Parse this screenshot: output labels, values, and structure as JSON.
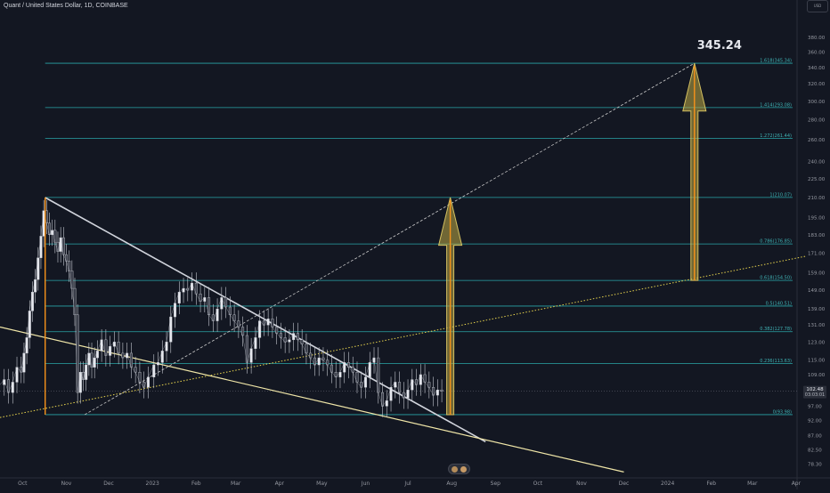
{
  "symbol": "Quant / United States Dollar, 1D, COINBASE",
  "price_box": "USD",
  "chart_data": {
    "type": "line",
    "title": "345.24",
    "yaxis": {
      "scale": "log",
      "range": [
        76.6,
        398
      ],
      "ticks": [
        "380.00",
        "360.00",
        "340.00",
        "320.00",
        "300.00",
        "280.00",
        "260.00",
        "240.00",
        "225.00",
        "210.00",
        "195.00",
        "183.00",
        "171.00",
        "159.00",
        "149.00",
        "139.00",
        "131.00",
        "123.00",
        "115.00",
        "109.00",
        "102.00",
        "97.00",
        "92.00",
        "87.00",
        "82.50",
        "78.30"
      ],
      "last_price": "102.48",
      "countdown": "03:03:01"
    },
    "xaxis": {
      "range": [
        "2022-09-15",
        "2024-04-08"
      ],
      "ticks": [
        {
          "label": "Oct",
          "date": "2022-10-01"
        },
        {
          "label": "Nov",
          "date": "2022-11-01"
        },
        {
          "label": "Dec",
          "date": "2022-12-01"
        },
        {
          "label": "2023",
          "date": "2023-01-01"
        },
        {
          "label": "Feb",
          "date": "2023-02-01"
        },
        {
          "label": "Mar",
          "date": "2023-03-01"
        },
        {
          "label": "Apr",
          "date": "2023-04-01"
        },
        {
          "label": "May",
          "date": "2023-05-01"
        },
        {
          "label": "Jun",
          "date": "2023-06-01"
        },
        {
          "label": "Jul",
          "date": "2023-07-01"
        },
        {
          "label": "Aug",
          "date": "2023-08-01"
        },
        {
          "label": "Sep",
          "date": "2023-09-01"
        },
        {
          "label": "Oct",
          "date": "2023-10-01"
        },
        {
          "label": "Nov",
          "date": "2023-11-01"
        },
        {
          "label": "Dec",
          "date": "2023-12-01"
        },
        {
          "label": "2024",
          "date": "2024-01-01"
        },
        {
          "label": "Feb",
          "date": "2024-02-01"
        },
        {
          "label": "Mar",
          "date": "2024-03-01"
        },
        {
          "label": "Apr",
          "date": "2024-04-01"
        }
      ]
    },
    "fib_levels": [
      {
        "label": "0(93.98)",
        "value": 93.98
      },
      {
        "label": "0.236(113.63)",
        "value": 113.63
      },
      {
        "label": "0.382(127.78)",
        "value": 127.78
      },
      {
        "label": "0.5(140.51)",
        "value": 140.51
      },
      {
        "label": "0.618(154.50)",
        "value": 154.5
      },
      {
        "label": "0.786(176.85)",
        "value": 176.85
      },
      {
        "label": "1(210.07)",
        "value": 210.07
      },
      {
        "label": "1.272(261.44)",
        "value": 261.44
      },
      {
        "label": "1.414(293.08)",
        "value": 293.08
      },
      {
        "label": "1.618(345.34)",
        "value": 345.34
      }
    ],
    "trendlines": [
      {
        "name": "descending-resistance",
        "points": [
          [
            "2022-10-17",
            210
          ],
          [
            "2023-08-25",
            85
          ]
        ]
      },
      {
        "name": "long-support",
        "points": [
          [
            "2022-09-15",
            130
          ],
          [
            "2023-12-01",
            76
          ]
        ]
      },
      {
        "name": "dotted-support",
        "points": [
          [
            "2022-09-15",
            93
          ],
          [
            "2024-04-08",
            169
          ]
        ]
      },
      {
        "name": "dashed-projection",
        "points": [
          [
            "2022-11-14",
            93.98
          ],
          [
            "2024-01-20",
            345.34
          ]
        ]
      }
    ],
    "arrows": [
      {
        "name": "arrow-left",
        "date": "2023-07-31",
        "from": 93.98,
        "to": 210.07
      },
      {
        "name": "arrow-right",
        "date": "2024-01-20",
        "from": 154.5,
        "to": 345.34
      }
    ],
    "vertical_markers": [
      {
        "date": "2022-10-17",
        "from": 93.98,
        "to": 210.07
      }
    ],
    "price_series": [
      [
        "2022-09-15",
        105
      ],
      [
        "2022-09-18",
        107
      ],
      [
        "2022-09-21",
        102
      ],
      [
        "2022-09-24",
        106
      ],
      [
        "2022-09-27",
        112
      ],
      [
        "2022-09-30",
        110
      ],
      [
        "2022-10-02",
        118
      ],
      [
        "2022-10-04",
        125
      ],
      [
        "2022-10-06",
        138
      ],
      [
        "2022-10-08",
        148
      ],
      [
        "2022-10-10",
        155
      ],
      [
        "2022-10-12",
        168
      ],
      [
        "2022-10-14",
        182
      ],
      [
        "2022-10-16",
        200
      ],
      [
        "2022-10-18",
        191
      ],
      [
        "2022-10-20",
        183
      ],
      [
        "2022-10-22",
        186
      ],
      [
        "2022-10-24",
        178
      ],
      [
        "2022-10-26",
        172
      ],
      [
        "2022-10-28",
        181
      ],
      [
        "2022-10-30",
        170
      ],
      [
        "2022-11-01",
        166
      ],
      [
        "2022-11-03",
        160
      ],
      [
        "2022-11-05",
        150
      ],
      [
        "2022-11-07",
        136
      ],
      [
        "2022-11-09",
        102
      ],
      [
        "2022-11-11",
        110
      ],
      [
        "2022-11-13",
        107
      ],
      [
        "2022-11-15",
        113
      ],
      [
        "2022-11-17",
        118
      ],
      [
        "2022-11-19",
        112
      ],
      [
        "2022-11-21",
        116
      ],
      [
        "2022-11-23",
        119
      ],
      [
        "2022-11-26",
        124
      ],
      [
        "2022-11-29",
        117
      ],
      [
        "2022-12-02",
        121
      ],
      [
        "2022-12-05",
        123
      ],
      [
        "2022-12-08",
        118
      ],
      [
        "2022-12-11",
        116
      ],
      [
        "2022-12-14",
        118
      ],
      [
        "2022-12-17",
        112
      ],
      [
        "2022-12-20",
        110
      ],
      [
        "2022-12-23",
        106
      ],
      [
        "2022-12-26",
        104
      ],
      [
        "2022-12-29",
        108
      ],
      [
        "2023-01-02",
        113
      ],
      [
        "2023-01-05",
        114
      ],
      [
        "2023-01-08",
        119
      ],
      [
        "2023-01-11",
        123
      ],
      [
        "2023-01-14",
        135
      ],
      [
        "2023-01-17",
        142
      ],
      [
        "2023-01-20",
        148
      ],
      [
        "2023-01-23",
        150
      ],
      [
        "2023-01-26",
        149
      ],
      [
        "2023-01-29",
        153
      ],
      [
        "2023-02-01",
        147
      ],
      [
        "2023-02-04",
        143
      ],
      [
        "2023-02-07",
        145
      ],
      [
        "2023-02-10",
        136
      ],
      [
        "2023-02-13",
        133
      ],
      [
        "2023-02-16",
        139
      ],
      [
        "2023-02-19",
        145
      ],
      [
        "2023-02-22",
        140
      ],
      [
        "2023-02-25",
        136
      ],
      [
        "2023-02-28",
        133
      ],
      [
        "2023-03-03",
        130
      ],
      [
        "2023-03-06",
        126
      ],
      [
        "2023-03-09",
        114
      ],
      [
        "2023-03-12",
        120
      ],
      [
        "2023-03-15",
        125
      ],
      [
        "2023-03-18",
        133
      ],
      [
        "2023-03-21",
        131
      ],
      [
        "2023-03-24",
        134
      ],
      [
        "2023-03-27",
        130
      ],
      [
        "2023-03-30",
        127
      ],
      [
        "2023-04-02",
        125
      ],
      [
        "2023-04-05",
        123
      ],
      [
        "2023-04-08",
        124
      ],
      [
        "2023-04-11",
        127
      ],
      [
        "2023-04-14",
        124
      ],
      [
        "2023-04-17",
        122
      ],
      [
        "2023-04-20",
        118
      ],
      [
        "2023-04-23",
        116
      ],
      [
        "2023-04-26",
        113
      ],
      [
        "2023-04-29",
        116
      ],
      [
        "2023-05-02",
        115
      ],
      [
        "2023-05-05",
        113
      ],
      [
        "2023-05-08",
        110
      ],
      [
        "2023-05-11",
        108
      ],
      [
        "2023-05-14",
        110
      ],
      [
        "2023-05-17",
        114
      ],
      [
        "2023-05-20",
        112
      ],
      [
        "2023-05-23",
        110
      ],
      [
        "2023-05-26",
        106
      ],
      [
        "2023-05-29",
        104
      ],
      [
        "2023-06-01",
        108
      ],
      [
        "2023-06-04",
        114
      ],
      [
        "2023-06-07",
        116
      ],
      [
        "2023-06-10",
        102
      ],
      [
        "2023-06-13",
        97
      ],
      [
        "2023-06-16",
        99
      ],
      [
        "2023-06-19",
        104
      ],
      [
        "2023-06-22",
        106
      ],
      [
        "2023-06-25",
        102
      ],
      [
        "2023-06-28",
        100
      ],
      [
        "2023-07-01",
        103
      ],
      [
        "2023-07-04",
        107
      ],
      [
        "2023-07-07",
        105
      ],
      [
        "2023-07-10",
        109
      ],
      [
        "2023-07-13",
        106
      ],
      [
        "2023-07-16",
        104
      ],
      [
        "2023-07-19",
        101
      ],
      [
        "2023-07-22",
        103
      ],
      [
        "2023-07-25",
        102.48
      ]
    ]
  }
}
